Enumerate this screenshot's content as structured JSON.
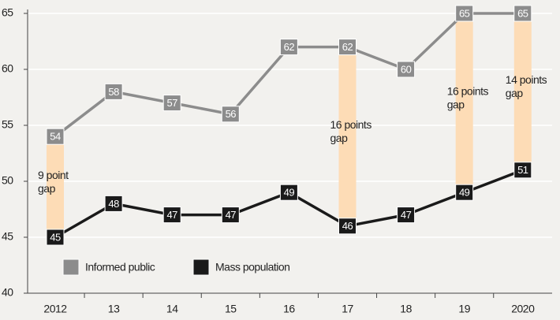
{
  "chart_data": {
    "type": "line",
    "categories": [
      "2012",
      "13",
      "14",
      "15",
      "16",
      "17",
      "18",
      "19",
      "2020"
    ],
    "series": [
      {
        "name": "Informed public",
        "color": "#8c8c8c",
        "values": [
          54,
          58,
          57,
          56,
          62,
          62,
          60,
          65,
          65
        ]
      },
      {
        "name": "Mass population",
        "color": "#1a1a1a",
        "values": [
          45,
          48,
          47,
          47,
          49,
          46,
          47,
          49,
          51
        ]
      }
    ],
    "gap_color": "#fddcb6",
    "annotations": [
      {
        "category": "2012",
        "lines": [
          "9 point",
          "gap"
        ]
      },
      {
        "category": "17",
        "lines": [
          "16 points",
          "gap"
        ]
      },
      {
        "category": "19",
        "lines": [
          "16 points",
          "gap"
        ]
      },
      {
        "category": "2020",
        "lines": [
          "14 points",
          "gap"
        ]
      }
    ],
    "ylim": [
      40,
      65
    ],
    "yticks": [
      40,
      45,
      50,
      55,
      60,
      65
    ],
    "grid": true,
    "legend": "lower left"
  }
}
